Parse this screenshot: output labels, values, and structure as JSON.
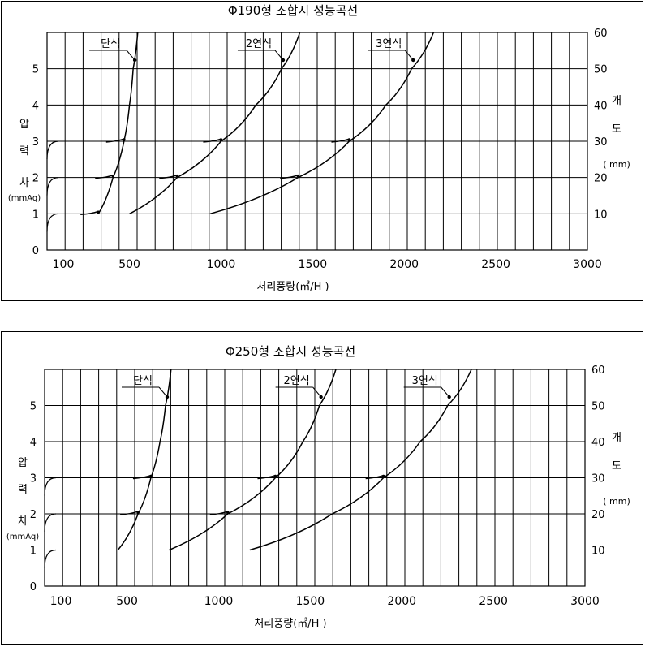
{
  "chart_data": [
    {
      "type": "line",
      "title": "Φ190형 조합시 성능곡선",
      "xlabel": "처리풍량(㎥/H )",
      "ylabel_left": [
        "압",
        "력",
        "차",
        "(mmAq)"
      ],
      "ylabel_right": [
        "개",
        "도",
        "( mm)"
      ],
      "x_ticks": [
        "100",
        "500",
        "1000",
        "1500",
        "2000",
        "2500",
        "3000"
      ],
      "y_left_ticks": [
        "0",
        "1",
        "2",
        "3",
        "4",
        "5"
      ],
      "y_right_ticks": [
        "10",
        "20",
        "30",
        "40",
        "50",
        "60"
      ],
      "xlim": [
        100,
        3000
      ],
      "ylim": [
        0,
        6
      ],
      "grid": true,
      "series": [
        {
          "name": "단식",
          "x": [
            330,
            410,
            470,
            500,
            520,
            545
          ],
          "y": [
            1,
            2,
            3,
            4,
            5,
            6
          ]
        },
        {
          "name": "2연식",
          "x": [
            500,
            760,
            1000,
            1190,
            1330,
            1430
          ],
          "y": [
            1,
            2,
            3,
            4,
            5,
            6
          ]
        },
        {
          "name": "3연식",
          "x": [
            940,
            1420,
            1700,
            1900,
            2040,
            2160
          ],
          "y": [
            1,
            2,
            3,
            4,
            5,
            6
          ]
        }
      ],
      "opening_markers": [
        {
          "series": "단식",
          "points": [
            [
              330,
              1
            ],
            [
              410,
              2
            ],
            [
              470,
              3
            ]
          ]
        },
        {
          "series": "2연식",
          "points": [
            [
              760,
              2
            ],
            [
              1000,
              3
            ]
          ]
        },
        {
          "series": "3연식",
          "points": [
            [
              1420,
              2
            ],
            [
              1700,
              3
            ]
          ]
        }
      ]
    },
    {
      "type": "line",
      "title": "Φ250형 조합시 성능곡선",
      "xlabel": "처리풍량(㎥/H )",
      "ylabel_left": [
        "압",
        "력",
        "차",
        "(mmAq)"
      ],
      "ylabel_right": [
        "개",
        "도",
        "( mm)"
      ],
      "x_ticks": [
        "100",
        "500",
        "1000",
        "1500",
        "2000",
        "2500",
        "3000"
      ],
      "y_left_ticks": [
        "0",
        "1",
        "2",
        "3",
        "4",
        "5"
      ],
      "y_right_ticks": [
        "10",
        "20",
        "30",
        "40",
        "50",
        "60"
      ],
      "xlim": [
        100,
        3000
      ],
      "ylim": [
        0,
        6
      ],
      "grid": true,
      "series": [
        {
          "name": "단식",
          "x": [
            450,
            560,
            630,
            680,
            710,
            740
          ],
          "y": [
            1,
            2,
            3,
            4,
            5,
            6
          ]
        },
        {
          "name": "2연식",
          "x": [
            730,
            1050,
            1310,
            1460,
            1550,
            1640
          ],
          "y": [
            1,
            2,
            3,
            4,
            5,
            6
          ]
        },
        {
          "name": "3연식",
          "x": [
            1170,
            1620,
            1900,
            2100,
            2250,
            2380
          ],
          "y": [
            1,
            2,
            3,
            4,
            5,
            6
          ]
        }
      ],
      "opening_markers": [
        {
          "series": "단식",
          "points": [
            [
              560,
              2
            ],
            [
              630,
              3
            ]
          ]
        },
        {
          "series": "2연식",
          "points": [
            [
              1050,
              2
            ],
            [
              1310,
              3
            ]
          ]
        },
        {
          "series": "3연식",
          "points": [
            [
              1900,
              3
            ]
          ]
        }
      ]
    }
  ]
}
